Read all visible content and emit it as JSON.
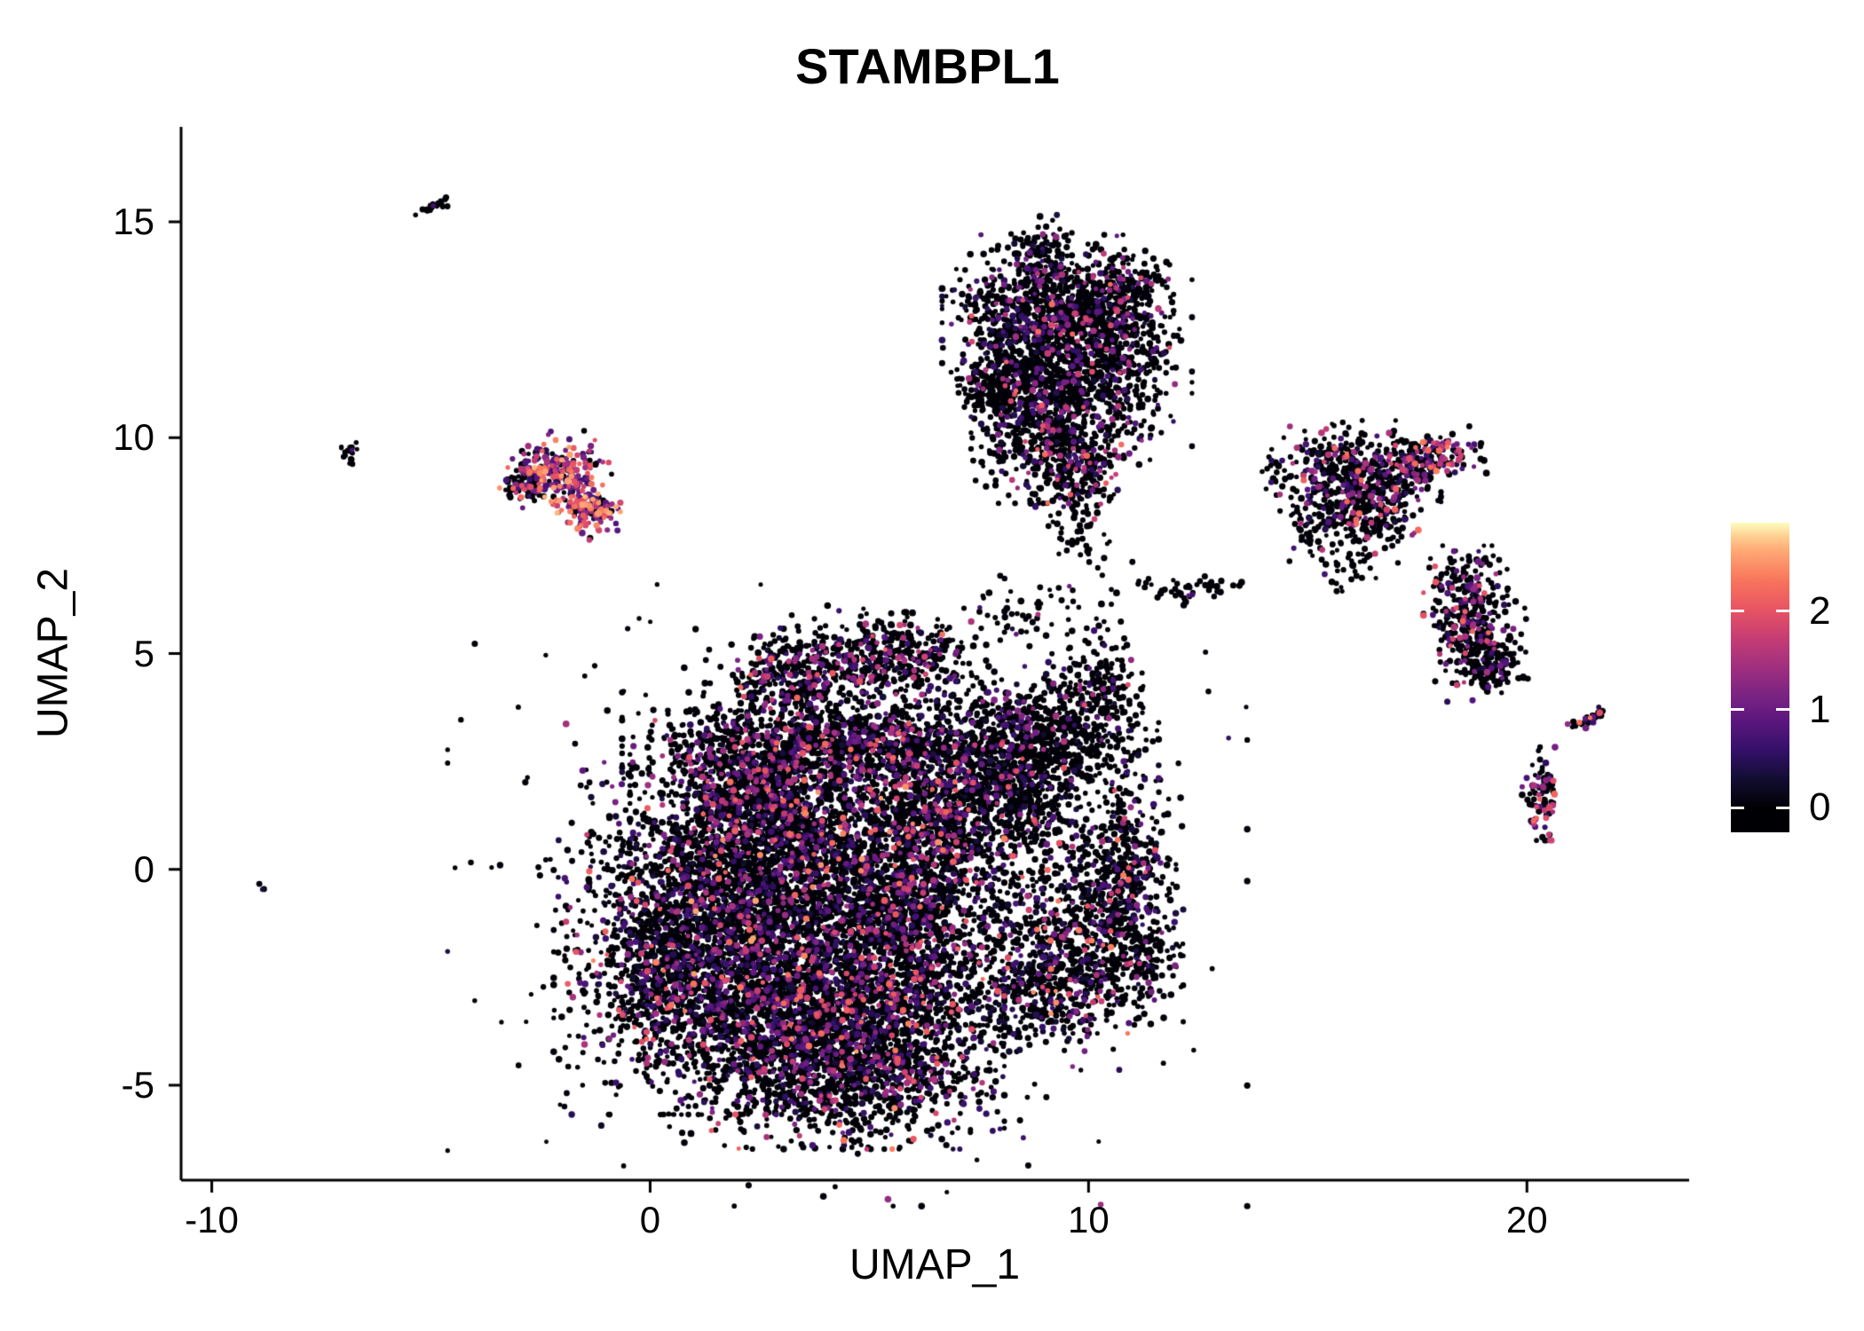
{
  "figure": {
    "background": "#ffffff",
    "axis_color": "#000000"
  },
  "chart_data": {
    "type": "scatter",
    "title": "STAMBPL1",
    "xlabel": "UMAP_1",
    "ylabel": "UMAP_2",
    "xlim": [
      -10.7,
      23.7
    ],
    "ylim": [
      -7.2,
      17.2
    ],
    "x_ticks": [
      "-10",
      "0",
      "10",
      "20"
    ],
    "x_tick_values": [
      -10,
      0,
      10,
      20
    ],
    "y_ticks": [
      "-5",
      "0",
      "5",
      "10",
      "15"
    ],
    "y_tick_values": [
      -5,
      0,
      5,
      10,
      15
    ],
    "grid": false,
    "point_radius_px": 3.1,
    "colormap": {
      "name": "magma",
      "color_scale_max": 2.9,
      "anchors": [
        [
          0.0,
          "#000004"
        ],
        [
          0.1,
          "#120d31"
        ],
        [
          0.2,
          "#331068"
        ],
        [
          0.3,
          "#5a167e"
        ],
        [
          0.4,
          "#7d2482"
        ],
        [
          0.5,
          "#a3307e"
        ],
        [
          0.6,
          "#c83e73"
        ],
        [
          0.7,
          "#e95562"
        ],
        [
          0.8,
          "#f8765c"
        ],
        [
          0.9,
          "#fea873"
        ],
        [
          0.95,
          "#fecd90"
        ],
        [
          1.0,
          "#fcfdbf"
        ]
      ]
    },
    "legend": {
      "position": "right",
      "tick_labels": [
        "0",
        "1",
        "2"
      ],
      "tick_values": [
        0,
        1,
        2
      ],
      "bar_value_min": -0.25,
      "bar_value_max": 2.9
    },
    "expression_profiles": {
      "default": [
        [
          0.76,
          0,
          0.05
        ],
        [
          0.13,
          0.2,
          0.8
        ],
        [
          0.07,
          0.8,
          1.6
        ],
        [
          0.033,
          1.6,
          2.2
        ],
        [
          0.007,
          2.2,
          2.6
        ]
      ],
      "dense_black": [
        [
          0.87,
          0,
          0.05
        ],
        [
          0.08,
          0.2,
          0.8
        ],
        [
          0.04,
          0.8,
          1.5
        ],
        [
          0.01,
          1.5,
          2.1
        ]
      ],
      "purple_specks": [
        [
          0.78,
          0,
          0.05
        ],
        [
          0.1,
          0.3,
          0.9
        ],
        [
          0.09,
          0.9,
          1.7
        ],
        [
          0.03,
          1.7,
          2.3
        ]
      ],
      "colorful": [
        [
          0.2,
          0,
          0.05
        ],
        [
          0.22,
          0.4,
          1.0
        ],
        [
          0.26,
          1.0,
          1.8
        ],
        [
          0.24,
          1.8,
          2.4
        ],
        [
          0.08,
          2.4,
          2.7
        ]
      ],
      "mixed": [
        [
          0.5,
          0,
          0.05
        ],
        [
          0.2,
          0.3,
          1.0
        ],
        [
          0.18,
          1.0,
          1.8
        ],
        [
          0.12,
          1.8,
          2.4
        ]
      ],
      "all_black": [
        [
          0.97,
          0,
          0.03
        ],
        [
          0.03,
          0.3,
          0.8
        ]
      ]
    },
    "clusters": [
      {
        "x": 1.4,
        "y": -1.6,
        "sx": 1.5,
        "sy": 1.7,
        "n": 2300,
        "rot": 0,
        "p": "default"
      },
      {
        "x": 4.0,
        "y": -3.6,
        "sx": 1.7,
        "sy": 1.2,
        "n": 2000,
        "rot": 0,
        "p": "default"
      },
      {
        "x": 5.6,
        "y": -1.2,
        "sx": 1.4,
        "sy": 1.7,
        "n": 2000,
        "rot": 0,
        "p": "default"
      },
      {
        "x": 2.9,
        "y": 0.7,
        "sx": 1.4,
        "sy": 1.1,
        "n": 1300,
        "rot": 0,
        "p": "default"
      },
      {
        "x": 6.6,
        "y": 1.4,
        "sx": 0.9,
        "sy": 1.1,
        "n": 800,
        "rot": 0,
        "p": "default"
      },
      {
        "x": 4.4,
        "y": 2.9,
        "sx": 2.1,
        "sy": 0.5,
        "n": 1100,
        "rot": 0,
        "p": "purple_specks"
      },
      {
        "x": 3.3,
        "y": 4.4,
        "sx": 0.8,
        "sy": 0.5,
        "n": 400,
        "rot": 10,
        "p": "purple_specks"
      },
      {
        "x": 5.5,
        "y": 4.9,
        "sx": 0.9,
        "sy": 0.45,
        "n": 420,
        "rot": -5,
        "p": "purple_specks"
      },
      {
        "x": 0.3,
        "y": -2.3,
        "sx": 0.55,
        "sy": 0.9,
        "n": 300,
        "rot": 0,
        "p": "default"
      },
      {
        "x": 4.5,
        "y": -0.6,
        "sx": 3.8,
        "sy": 3.0,
        "n": 600,
        "rot": 0,
        "p": "dense_black"
      },
      {
        "x": 5.0,
        "y": -5.0,
        "sx": 1.2,
        "sy": 0.6,
        "n": 350,
        "rot": 0,
        "p": "default"
      },
      {
        "x": 2.2,
        "y": 2.0,
        "sx": 0.8,
        "sy": 0.7,
        "n": 400,
        "rot": 0,
        "p": "purple_specks"
      },
      {
        "x": 9.2,
        "y": 2.9,
        "sx": 1.0,
        "sy": 0.75,
        "n": 650,
        "rot": 0,
        "p": "dense_black"
      },
      {
        "x": 8.4,
        "y": 1.6,
        "sx": 0.7,
        "sy": 0.7,
        "n": 320,
        "rot": 0,
        "p": "dense_black"
      },
      {
        "x": 10.0,
        "y": -1.4,
        "sx": 0.9,
        "sy": 1.0,
        "n": 650,
        "rot": 0,
        "p": "default"
      },
      {
        "x": 9.0,
        "y": -2.9,
        "sx": 0.8,
        "sy": 0.55,
        "n": 300,
        "rot": 0,
        "p": "default"
      },
      {
        "x": 10.3,
        "y": 4.3,
        "sx": 0.45,
        "sy": 0.6,
        "n": 150,
        "rot": 0,
        "p": "dense_black"
      },
      {
        "x": 10.9,
        "y": 0.4,
        "sx": 0.5,
        "sy": 0.8,
        "n": 250,
        "rot": 0,
        "p": "dense_black"
      },
      {
        "x": 11.2,
        "y": -2.0,
        "sx": 0.4,
        "sy": 0.6,
        "n": 120,
        "rot": 0,
        "p": "dense_black"
      },
      {
        "x": 9.3,
        "y": 12.9,
        "sx": 1.1,
        "sy": 0.75,
        "n": 850,
        "rot": 0,
        "p": "purple_specks"
      },
      {
        "x": 10.2,
        "y": 11.5,
        "sx": 0.9,
        "sy": 0.9,
        "n": 650,
        "rot": 0,
        "p": "dense_black"
      },
      {
        "x": 9.0,
        "y": 10.4,
        "sx": 0.7,
        "sy": 0.8,
        "n": 450,
        "rot": 0,
        "p": "purple_specks"
      },
      {
        "x": 9.6,
        "y": 9.2,
        "sx": 0.5,
        "sy": 0.55,
        "n": 220,
        "rot": 0,
        "p": "purple_specks"
      },
      {
        "x": 8.2,
        "y": 11.5,
        "sx": 0.5,
        "sy": 0.9,
        "n": 280,
        "rot": 0,
        "p": "dense_black"
      },
      {
        "x": 8.9,
        "y": 14.2,
        "sx": 0.3,
        "sy": 0.4,
        "n": 90,
        "rot": 0,
        "p": "dense_black"
      },
      {
        "x": 7.7,
        "y": 11.2,
        "sx": 0.35,
        "sy": 0.3,
        "n": 80,
        "rot": 0,
        "p": "all_black"
      },
      {
        "x": 10.9,
        "y": 13.4,
        "sx": 0.4,
        "sy": 0.4,
        "n": 150,
        "rot": 0,
        "p": "dense_black"
      },
      {
        "x": -4.8,
        "y": 15.4,
        "sx": 0.28,
        "sy": 0.07,
        "n": 22,
        "rot": 25,
        "p": "all_black"
      },
      {
        "x": -6.85,
        "y": 9.7,
        "sx": 0.12,
        "sy": 0.18,
        "n": 18,
        "rot": 0,
        "p": "all_black"
      },
      {
        "x": -8.8,
        "y": -0.45,
        "sx": 0.06,
        "sy": 0.06,
        "n": 3,
        "rot": 0,
        "p": "all_black"
      },
      {
        "x": -2.2,
        "y": 9.2,
        "sx": 0.55,
        "sy": 0.4,
        "n": 230,
        "rot": 0,
        "p": "colorful"
      },
      {
        "x": -1.4,
        "y": 8.35,
        "sx": 0.3,
        "sy": 0.3,
        "n": 130,
        "rot": 0,
        "p": "colorful"
      },
      {
        "x": -2.9,
        "y": 8.9,
        "sx": 0.25,
        "sy": 0.2,
        "n": 50,
        "rot": 0,
        "p": "default"
      },
      {
        "x": 8.6,
        "y": 6.0,
        "sx": 0.8,
        "sy": 0.5,
        "n": 60,
        "rot": 0,
        "p": "dense_black"
      },
      {
        "x": 12.4,
        "y": 6.5,
        "sx": 0.5,
        "sy": 0.15,
        "n": 30,
        "rot": 5,
        "p": "dense_black"
      },
      {
        "x": 11.4,
        "y": 6.6,
        "sx": 0.15,
        "sy": 0.1,
        "n": 8,
        "rot": 0,
        "p": "all_black"
      },
      {
        "x": 9.8,
        "y": 7.5,
        "sx": 0.5,
        "sy": 0.6,
        "n": 40,
        "rot": 0,
        "p": "all_black"
      },
      {
        "x": 16.0,
        "y": 9.2,
        "sx": 0.85,
        "sy": 0.5,
        "n": 420,
        "rot": 0,
        "p": "purple_specks"
      },
      {
        "x": 16.6,
        "y": 8.3,
        "sx": 0.5,
        "sy": 0.5,
        "n": 200,
        "rot": 0,
        "p": "purple_specks"
      },
      {
        "x": 17.8,
        "y": 9.5,
        "sx": 0.5,
        "sy": 0.28,
        "n": 160,
        "rot": 10,
        "p": "mixed"
      },
      {
        "x": 15.3,
        "y": 8.1,
        "sx": 0.4,
        "sy": 0.4,
        "n": 90,
        "rot": 0,
        "p": "dense_black"
      },
      {
        "x": 15.8,
        "y": 7.1,
        "sx": 0.4,
        "sy": 0.3,
        "n": 40,
        "rot": 0,
        "p": "all_black"
      },
      {
        "x": 18.6,
        "y": 6.3,
        "sx": 0.4,
        "sy": 0.5,
        "n": 200,
        "rot": 0,
        "p": "purple_specks"
      },
      {
        "x": 18.9,
        "y": 5.2,
        "sx": 0.45,
        "sy": 0.55,
        "n": 240,
        "rot": 0,
        "p": "purple_specks"
      },
      {
        "x": 19.3,
        "y": 4.65,
        "sx": 0.3,
        "sy": 0.2,
        "n": 70,
        "rot": 0,
        "p": "dense_black"
      },
      {
        "x": 21.4,
        "y": 3.5,
        "sx": 0.28,
        "sy": 0.07,
        "n": 30,
        "rot": 30,
        "p": "mixed"
      },
      {
        "x": 20.3,
        "y": 1.75,
        "sx": 0.17,
        "sy": 0.45,
        "n": 80,
        "rot": 0,
        "p": "mixed"
      },
      {
        "x": 20.15,
        "y": 1.1,
        "sx": 0.08,
        "sy": 0.08,
        "n": 6,
        "rot": 0,
        "p": "colorful"
      },
      {
        "x": 12.9,
        "y": 6.55,
        "sx": 0.2,
        "sy": 0.1,
        "n": 10,
        "rot": 0,
        "p": "all_black"
      }
    ]
  }
}
